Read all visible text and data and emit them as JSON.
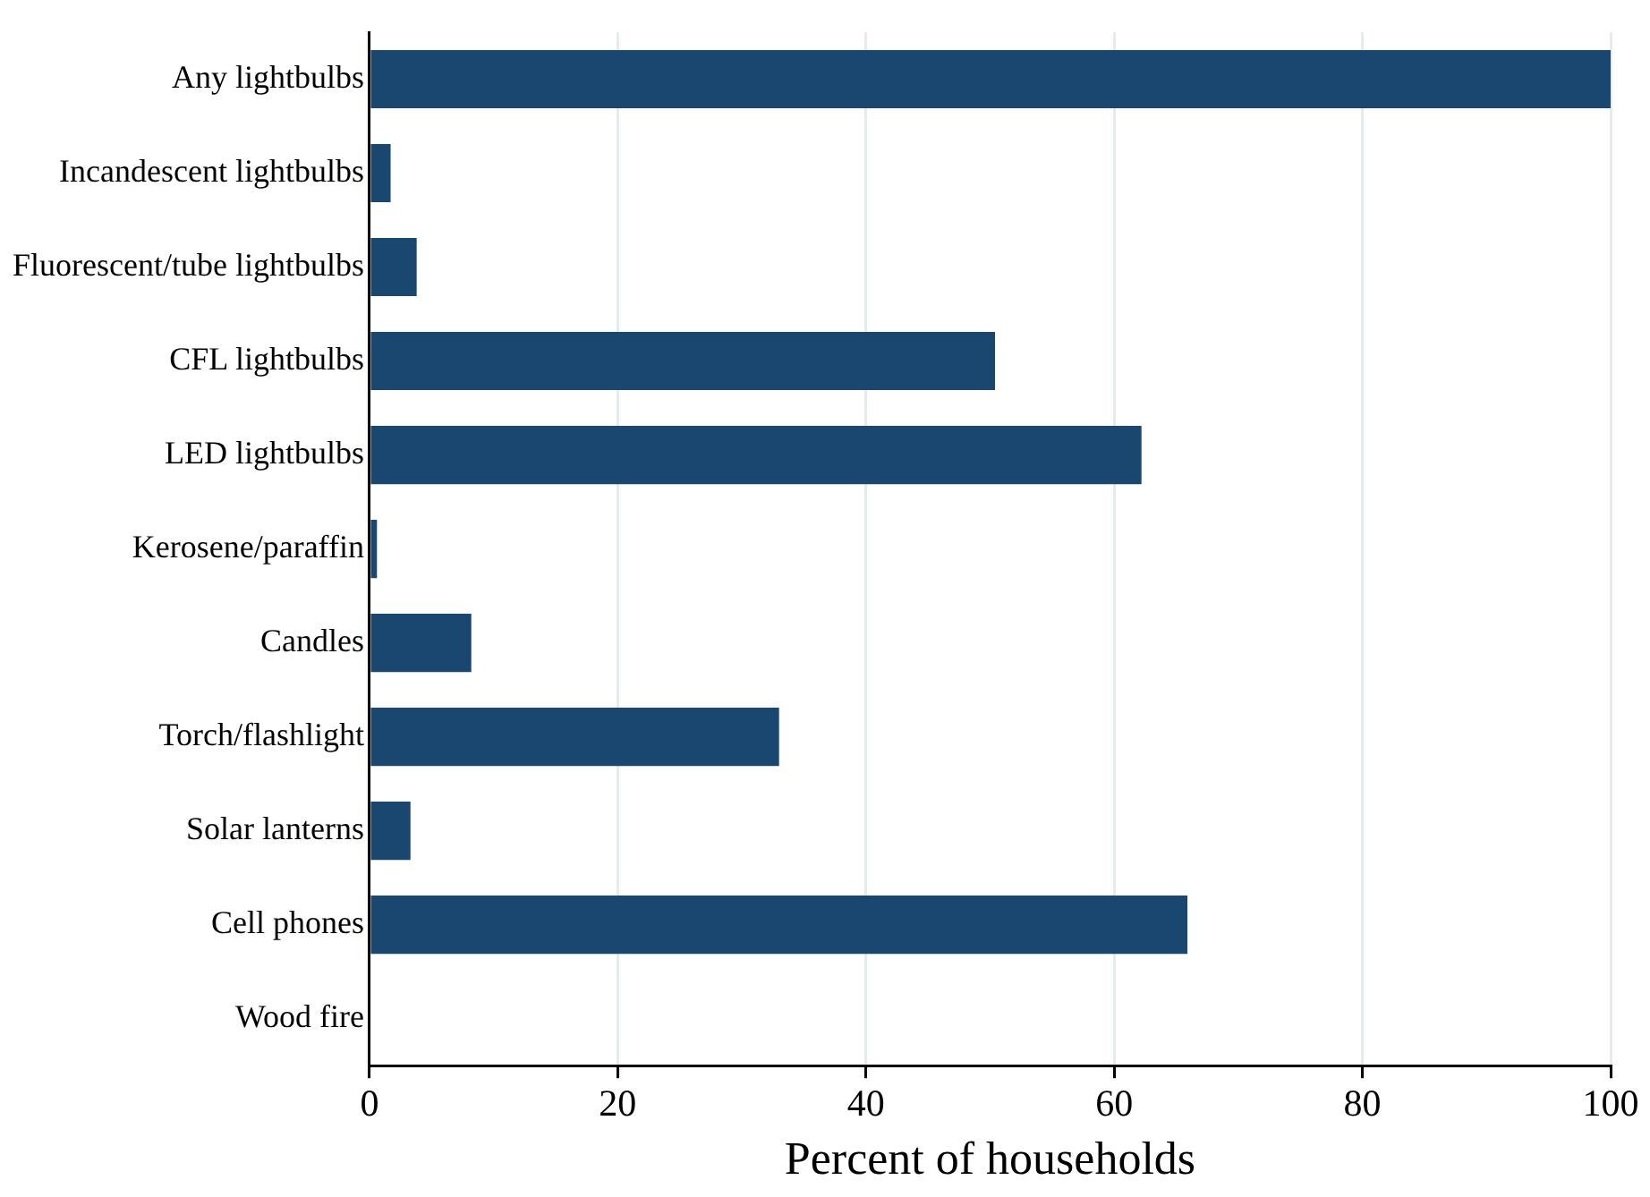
{
  "chart_data": {
    "type": "bar",
    "orientation": "horizontal",
    "xlabel": "Percent of households",
    "categories": [
      "Any lightbulbs",
      "Incandescent lightbulbs",
      "Fluorescent/tube lightbulbs",
      "CFL lightbulbs",
      "LED lightbulbs",
      "Kerosene/paraffin",
      "Candles",
      "Torch/flashlight",
      "Solar lanterns",
      "Cell phones",
      "Wood fire"
    ],
    "values": [
      100,
      1.7,
      3.8,
      50.4,
      62.2,
      0.6,
      8.2,
      33.0,
      3.3,
      65.9,
      0
    ],
    "color": "#1a476f",
    "xlim": [
      0,
      100
    ],
    "xticks": [
      0,
      20,
      40,
      60,
      80,
      100
    ],
    "grid": "x",
    "legend": false
  }
}
